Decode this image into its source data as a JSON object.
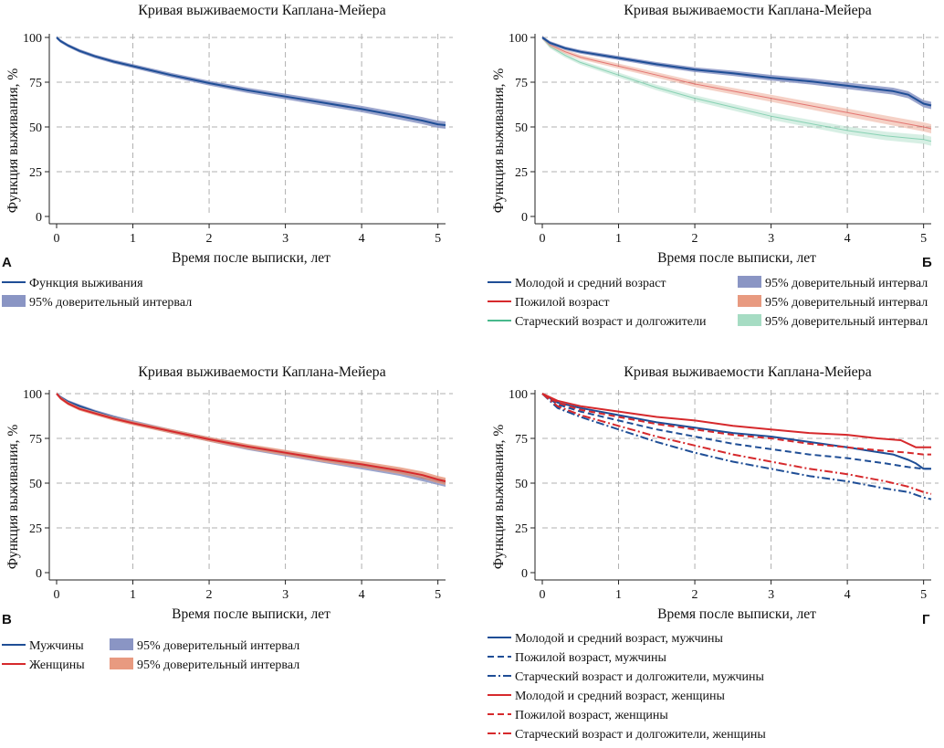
{
  "colors": {
    "blue": "#1f4e96",
    "red": "#d6292c",
    "green": "#48b98c",
    "ci_blue": "#8a95c4",
    "ci_red": "#e89a80",
    "ci_green": "#a6dcc3",
    "grid": "#b0b0b0"
  },
  "chart_data": [
    {
      "panel": "А",
      "type": "line",
      "title": "Кривая выживаемости Каплана-Мейера",
      "xlabel": "Время после выписки, лет",
      "ylabel": "Функция выживания, %",
      "xlim": [
        0,
        5.1
      ],
      "ylim": [
        0,
        100
      ],
      "xticks": [
        "0",
        "1",
        "2",
        "3",
        "4",
        "5"
      ],
      "yticks": [
        "0",
        "25",
        "50",
        "75",
        "100"
      ],
      "grid": true,
      "legend_position": "bottom",
      "legend": [
        {
          "label": "Функция выживания",
          "kind": "line",
          "color": "blue"
        },
        {
          "label": "95% доверительный интервал",
          "kind": "band",
          "color": "ci_blue"
        }
      ],
      "series": [
        {
          "color": "blue",
          "style": "solid",
          "ci": "ci_blue",
          "x": [
            0,
            0.05,
            0.15,
            0.3,
            0.5,
            0.75,
            1,
            1.5,
            2,
            2.5,
            3,
            3.5,
            4,
            4.5,
            4.8,
            5,
            5.1
          ],
          "y": [
            100,
            98,
            95.5,
            92.5,
            89.5,
            86.5,
            84,
            79,
            74.5,
            70.5,
            67,
            63.5,
            60,
            56,
            53.5,
            51.5,
            51
          ]
        }
      ]
    },
    {
      "panel": "Б",
      "type": "line",
      "title": "Кривая выживаемости Каплана-Мейера",
      "xlabel": "Время после выписки, лет",
      "ylabel": "Функция выживания, %",
      "xlim": [
        0,
        5.1
      ],
      "ylim": [
        0,
        100
      ],
      "xticks": [
        "0",
        "1",
        "2",
        "3",
        "4",
        "5"
      ],
      "yticks": [
        "0",
        "25",
        "50",
        "75",
        "100"
      ],
      "grid": true,
      "legend_position": "bottom",
      "legend": [
        {
          "label": "Молодой и средний возраст",
          "kind": "line",
          "color": "blue"
        },
        {
          "label": "Пожилой возраст",
          "kind": "line",
          "color": "red"
        },
        {
          "label": "Старческий возраст и долгожители",
          "kind": "line",
          "color": "green"
        },
        {
          "label": "95% доверительный интервал",
          "kind": "band",
          "color": "ci_blue"
        },
        {
          "label": "95% доверительный интервал",
          "kind": "band",
          "color": "ci_red"
        },
        {
          "label": "95% доверительный интервал",
          "kind": "band",
          "color": "ci_green"
        }
      ],
      "series": [
        {
          "color": "green",
          "style": "solid",
          "ci": "ci_green",
          "faint": true,
          "x": [
            0,
            0.1,
            0.3,
            0.5,
            1,
            1.5,
            2,
            2.5,
            3,
            3.5,
            4,
            4.5,
            5,
            5.1
          ],
          "y": [
            100,
            95,
            90,
            86,
            79,
            72,
            66,
            61,
            56,
            52,
            48,
            45,
            43,
            42
          ]
        },
        {
          "color": "red",
          "style": "solid",
          "ci": "ci_red",
          "faint": true,
          "x": [
            0,
            0.1,
            0.3,
            0.5,
            1,
            1.5,
            2,
            2.5,
            3,
            3.5,
            4,
            4.5,
            5,
            5.1
          ],
          "y": [
            100,
            96,
            92,
            89,
            84,
            79,
            74,
            70,
            66,
            62,
            58,
            54,
            50,
            49
          ]
        },
        {
          "color": "blue",
          "style": "solid",
          "ci": "ci_blue",
          "x": [
            0,
            0.1,
            0.3,
            0.5,
            1,
            1.5,
            2,
            2.5,
            3,
            3.5,
            4,
            4.3,
            4.6,
            4.8,
            5,
            5.1
          ],
          "y": [
            100,
            97,
            94,
            92,
            88.5,
            85,
            82,
            80,
            77.5,
            75.5,
            73,
            71.5,
            70,
            68,
            63,
            62
          ]
        }
      ]
    },
    {
      "panel": "В",
      "type": "line",
      "title": "Кривая выживаемости Каплана-Мейера",
      "xlabel": "Время после выписки, лет",
      "ylabel": "Функция выживания, %",
      "xlim": [
        0,
        5.1
      ],
      "ylim": [
        0,
        100
      ],
      "xticks": [
        "0",
        "1",
        "2",
        "3",
        "4",
        "5"
      ],
      "yticks": [
        "0",
        "25",
        "50",
        "75",
        "100"
      ],
      "grid": true,
      "legend_position": "bottom",
      "legend": [
        {
          "label": "Мужчины",
          "kind": "line",
          "color": "blue"
        },
        {
          "label": "Женщины",
          "kind": "line",
          "color": "red"
        },
        {
          "label": "95% доверительный интервал",
          "kind": "band",
          "color": "ci_blue"
        },
        {
          "label": "95% доверительный интервал",
          "kind": "band",
          "color": "ci_red"
        }
      ],
      "series": [
        {
          "color": "blue",
          "style": "solid",
          "ci": "ci_blue",
          "x": [
            0,
            0.05,
            0.15,
            0.3,
            0.5,
            0.75,
            1,
            1.5,
            2,
            2.5,
            3,
            3.5,
            4,
            4.5,
            4.8,
            5,
            5.1
          ],
          "y": [
            100,
            98,
            95.5,
            93,
            90,
            86.8,
            84,
            79,
            74.5,
            70,
            66.5,
            63,
            59.5,
            56,
            53,
            51,
            50
          ]
        },
        {
          "color": "red",
          "style": "solid",
          "ci": "ci_red",
          "x": [
            0,
            0.05,
            0.15,
            0.3,
            0.5,
            0.75,
            1,
            1.5,
            2,
            2.5,
            3,
            3.5,
            4,
            4.5,
            4.8,
            5,
            5.1
          ],
          "y": [
            100,
            97.5,
            94.5,
            91.5,
            89,
            86,
            83.5,
            79,
            74.5,
            70.5,
            67,
            63.5,
            60.5,
            57,
            54.5,
            52,
            51
          ]
        }
      ]
    },
    {
      "panel": "Г",
      "type": "line",
      "title": "Кривая выживаемости Каплана-Мейера",
      "xlabel": "Время после выписки, лет",
      "ylabel": "Функция выживания, %",
      "xlim": [
        0,
        5.1
      ],
      "ylim": [
        0,
        100
      ],
      "xticks": [
        "0",
        "1",
        "2",
        "3",
        "4",
        "5"
      ],
      "yticks": [
        "0",
        "25",
        "50",
        "75",
        "100"
      ],
      "grid": true,
      "legend_position": "bottom",
      "legend": [
        {
          "label": "Молодой и средний возраст, мужчины",
          "kind": "line",
          "color": "blue",
          "style": "solid"
        },
        {
          "label": "Пожилой возраст, мужчины",
          "kind": "line",
          "color": "blue",
          "style": "dash"
        },
        {
          "label": "Старческий возраст и долгожители, мужчины",
          "kind": "line",
          "color": "blue",
          "style": "dashdot"
        },
        {
          "label": "Молодой и средний возраст, женщины",
          "kind": "line",
          "color": "red",
          "style": "solid"
        },
        {
          "label": "Пожилой возраст, женщины",
          "kind": "line",
          "color": "red",
          "style": "dash"
        },
        {
          "label": "Старческий возраст и долгожители, женщины",
          "kind": "line",
          "color": "red",
          "style": "dashdot"
        }
      ],
      "series": [
        {
          "color": "blue",
          "style": "solid",
          "x": [
            0,
            0.2,
            0.5,
            1,
            1.5,
            2,
            2.5,
            3,
            3.5,
            4,
            4.3,
            4.6,
            4.8,
            4.9,
            5,
            5.1
          ],
          "y": [
            100,
            95,
            92,
            88,
            84,
            81,
            78,
            76,
            73,
            70,
            68,
            66,
            63,
            61,
            58,
            58
          ]
        },
        {
          "color": "blue",
          "style": "dash",
          "x": [
            0,
            0.2,
            0.5,
            1,
            1.5,
            2,
            2.5,
            3,
            3.5,
            4,
            4.5,
            4.8,
            5,
            5.1
          ],
          "y": [
            100,
            94,
            90,
            85,
            80,
            76,
            72,
            69,
            66,
            64,
            61,
            59,
            58,
            58
          ]
        },
        {
          "color": "blue",
          "style": "dashdot",
          "x": [
            0,
            0.2,
            0.5,
            1,
            1.5,
            2,
            2.5,
            3,
            3.5,
            4,
            4.5,
            4.8,
            5,
            5.1
          ],
          "y": [
            100,
            92,
            87,
            80,
            73,
            67,
            62,
            58,
            54,
            51,
            47,
            45,
            42,
            41
          ]
        },
        {
          "color": "red",
          "style": "solid",
          "x": [
            0,
            0.2,
            0.5,
            1,
            1.5,
            2,
            2.5,
            3,
            3.5,
            4,
            4.4,
            4.7,
            4.9,
            5,
            5.1
          ],
          "y": [
            100,
            96,
            93,
            90,
            87,
            85,
            82,
            80,
            78,
            77,
            75,
            74,
            70,
            70,
            70
          ]
        },
        {
          "color": "red",
          "style": "dash",
          "x": [
            0,
            0.2,
            0.5,
            1,
            1.5,
            2,
            2.5,
            3,
            3.5,
            4,
            4.5,
            4.8,
            5,
            5.1
          ],
          "y": [
            100,
            95,
            91,
            87,
            83,
            80,
            77,
            75,
            72,
            70,
            68,
            67,
            66,
            66
          ]
        },
        {
          "color": "red",
          "style": "dashdot",
          "x": [
            0,
            0.2,
            0.5,
            1,
            1.5,
            2,
            2.5,
            3,
            3.5,
            4,
            4.5,
            4.8,
            5,
            5.1
          ],
          "y": [
            100,
            93,
            88,
            82,
            76,
            71,
            66,
            62,
            58,
            55,
            51,
            48,
            45,
            44
          ]
        }
      ]
    }
  ]
}
